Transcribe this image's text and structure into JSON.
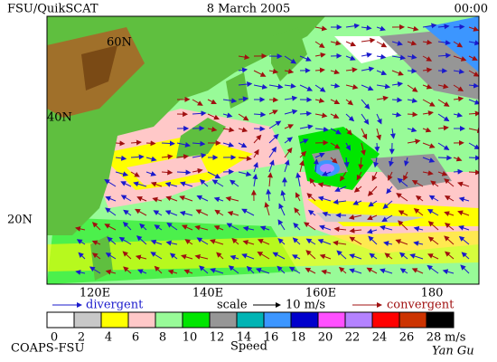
{
  "header": {
    "left": "FSU/QuikSCAT",
    "date": "8 March 2005",
    "time": "00:00"
  },
  "map": {
    "lat_labels": [
      "60N",
      "40N",
      "20N"
    ],
    "lon_labels": [
      "120E",
      "140E",
      "160E",
      "180"
    ]
  },
  "legend": {
    "divergent": "divergent",
    "scale": "scale",
    "scale_value": "10 m/s",
    "convergent": "convergent"
  },
  "colorbar": {
    "ticks": [
      0,
      2,
      4,
      6,
      8,
      10,
      12,
      14,
      16,
      18,
      20,
      22,
      24,
      26,
      28
    ],
    "unit": "m/s",
    "label": "Speed",
    "colors": [
      "#ffffff",
      "#c8c8c8",
      "#ffff00",
      "#ffc8c8",
      "#98fb98",
      "#00e600",
      "#969696",
      "#00b4b4",
      "#3c96ff",
      "#0000cc",
      "#ff50ff",
      "#b482ff",
      "#ff0000",
      "#cc3300",
      "#000000"
    ]
  },
  "footer": {
    "left": "COAPS-FSU",
    "signature": "Yan Gu"
  }
}
